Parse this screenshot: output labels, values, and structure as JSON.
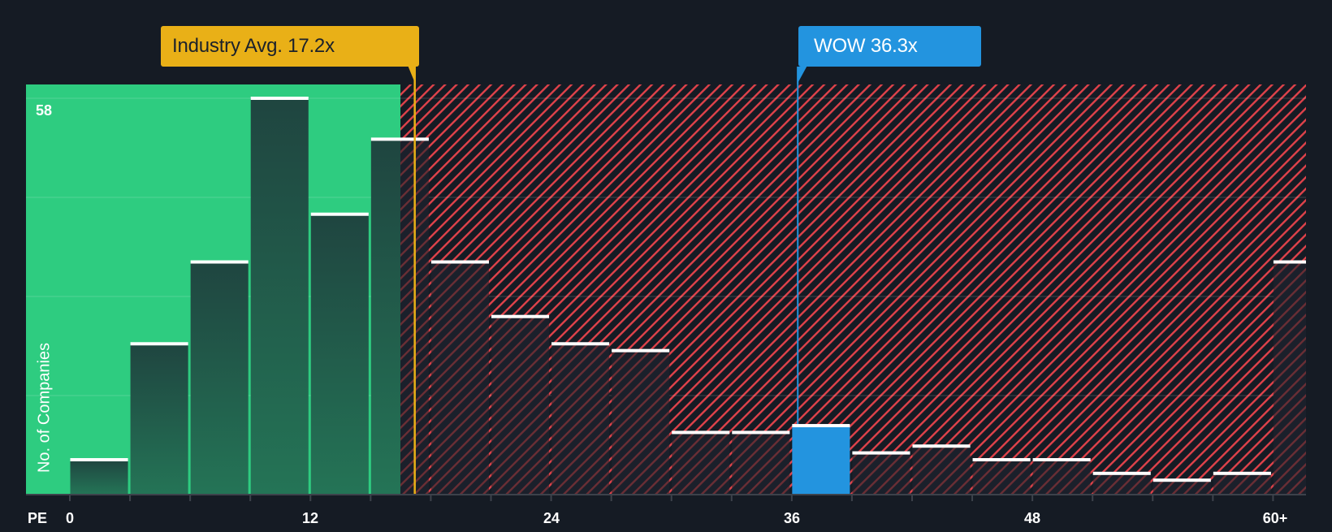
{
  "chart_data": {
    "type": "bar",
    "title": "",
    "xlabel": "PE",
    "ylabel": "No. of Companies",
    "x_tick_labels": [
      "0",
      "12",
      "24",
      "36",
      "48",
      "60+"
    ],
    "x_tick_values": [
      0,
      12,
      24,
      36,
      48,
      60
    ],
    "bin_width": 3,
    "ylim": [
      0,
      58
    ],
    "y_max_label": "58",
    "grid": true,
    "legend": null,
    "categories": [
      "0-3",
      "3-6",
      "6-9",
      "9-12",
      "12-15",
      "15-18",
      "18-21",
      "21-24",
      "24-27",
      "27-30",
      "30-33",
      "33-36",
      "36-39",
      "39-42",
      "42-45",
      "45-48",
      "48-51",
      "51-54",
      "54-57",
      "57-60",
      "60+"
    ],
    "values": [
      5,
      22,
      34,
      58,
      41,
      52,
      34,
      26,
      22,
      21,
      9,
      9,
      10,
      6,
      7,
      5,
      5,
      3,
      2,
      3,
      34
    ],
    "annotations": [
      {
        "label": "Industry Avg. 17.2x",
        "name": "Industry Avg.",
        "value": 17.2,
        "color": "#e9b017"
      },
      {
        "label": "WOW 36.3x",
        "name": "WOW",
        "value": 36.3,
        "color": "#2394df"
      }
    ],
    "highlight_bin": "36-39",
    "regions": [
      {
        "from": 0,
        "to": 17.2,
        "meaning": "below industry average",
        "color": "#2ecc80"
      },
      {
        "from": 17.2,
        "to": 62,
        "meaning": "above industry average",
        "color": "#e0424a"
      }
    ]
  },
  "labels": {
    "industry_callout": "Industry Avg. 17.2x",
    "company_callout": "WOW 36.3x",
    "y_axis_title": "No. of Companies",
    "y_max": "58",
    "x_axis_name": "PE",
    "x_ticks": [
      "0",
      "12",
      "24",
      "36",
      "48",
      "60+"
    ]
  },
  "colors": {
    "background": "#151b24",
    "green_region": "#2ecc80",
    "bar_dark": "#1f4a40",
    "hatch_red": "#e0424a",
    "industry": "#e9b017",
    "company": "#2394df",
    "bar_top": "#ffffff"
  }
}
